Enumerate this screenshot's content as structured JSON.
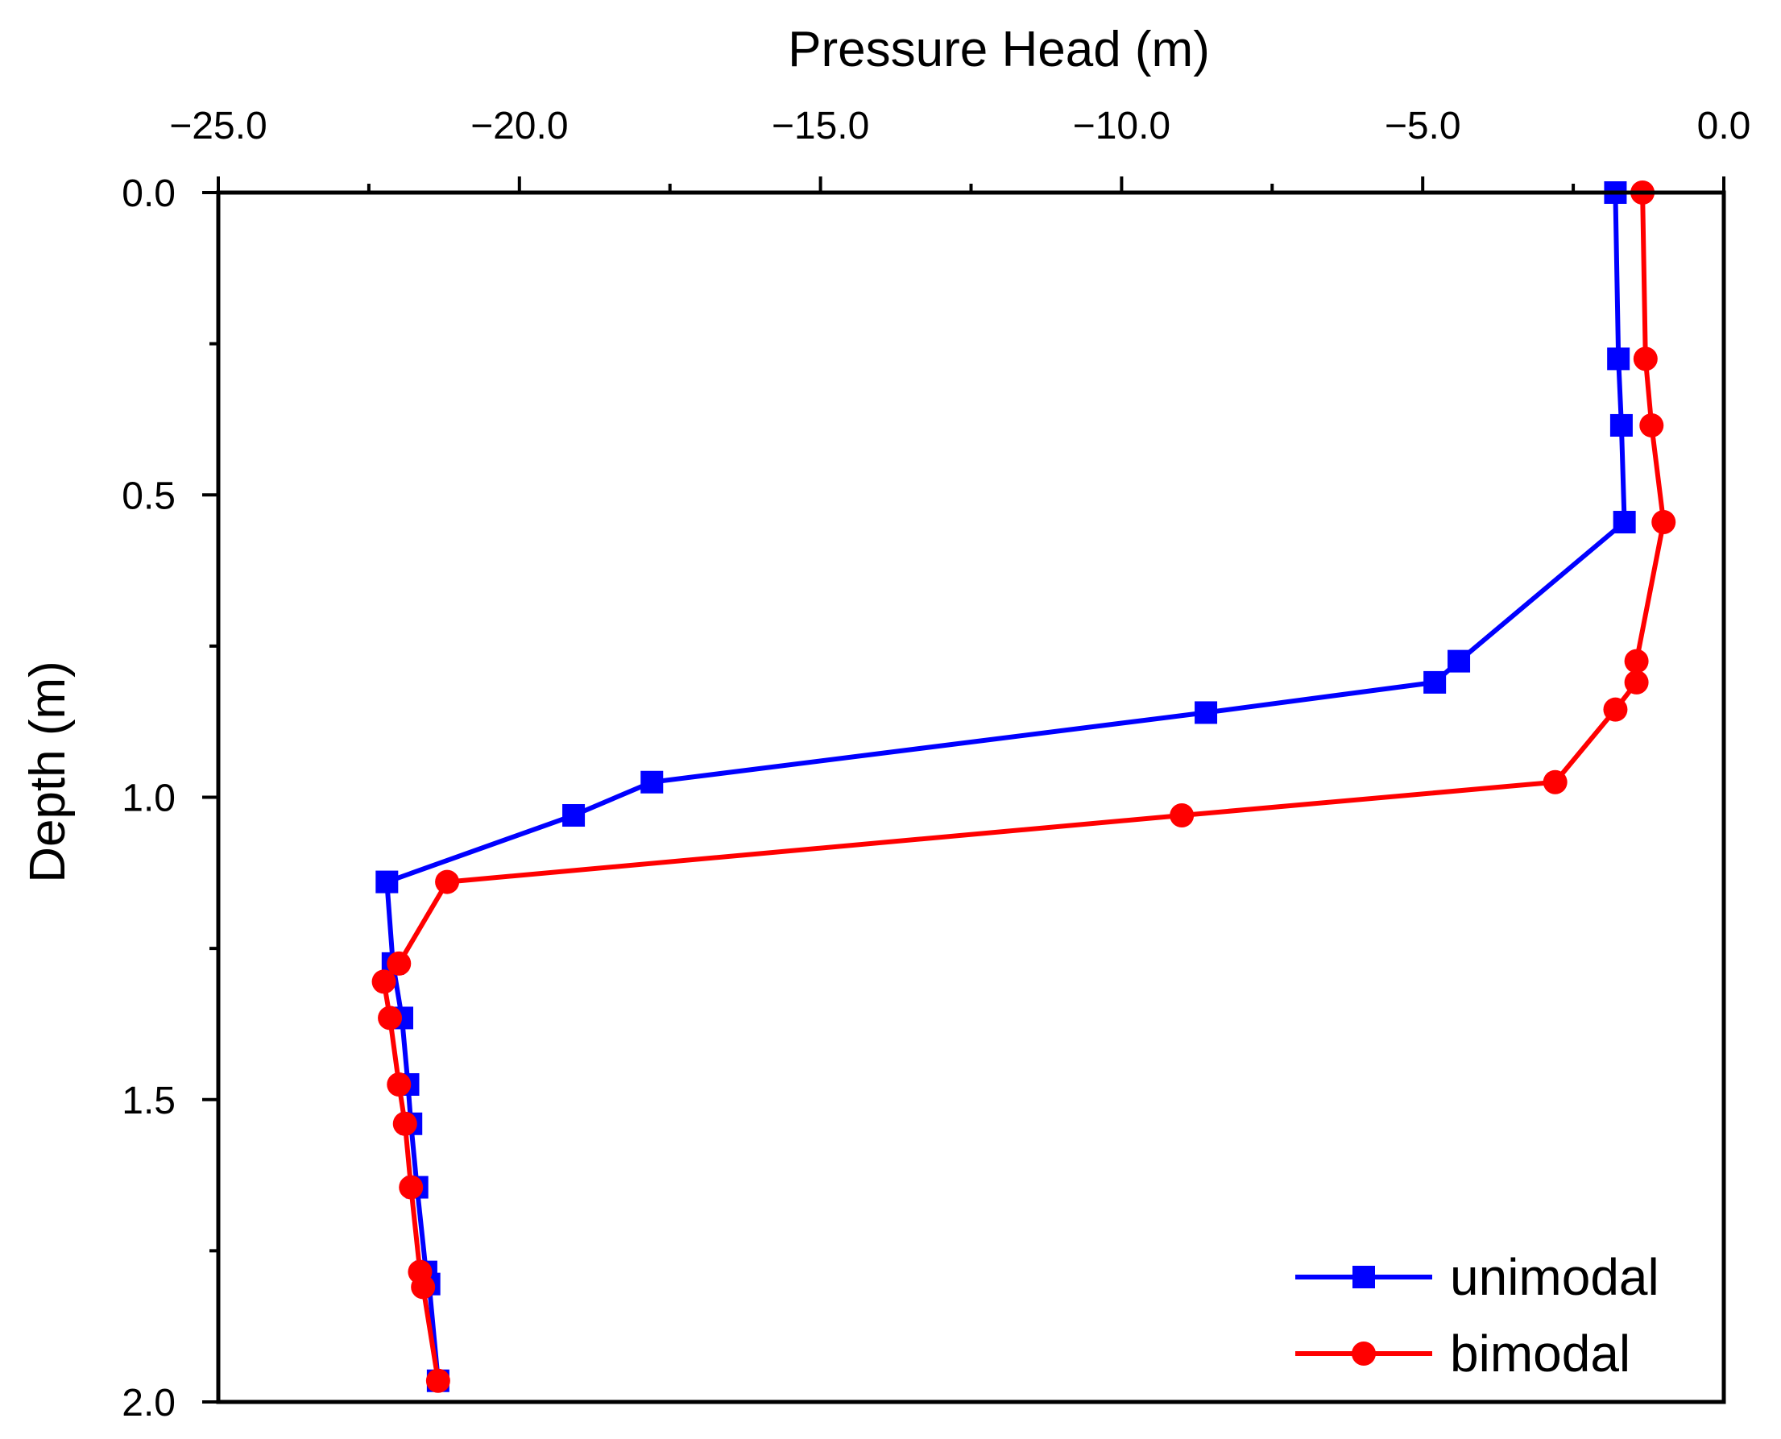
{
  "chart_data": {
    "type": "line",
    "title": "",
    "xlabel": "Pressure Head (m)",
    "ylabel": "Depth (m)",
    "x_axis_position": "top",
    "y_axis_inverted": true,
    "xlim": [
      -25.0,
      0.0
    ],
    "ylim": [
      0.0,
      2.0
    ],
    "x_ticks": [
      -25.0,
      -20.0,
      -15.0,
      -10.0,
      -5.0,
      0.0
    ],
    "x_tick_labels": [
      "−25.0",
      "−20.0",
      "−15.0",
      "−10.0",
      "−5.0",
      "0.0"
    ],
    "y_ticks": [
      0.0,
      0.5,
      1.0,
      1.5,
      2.0
    ],
    "y_tick_labels": [
      "0.0",
      "0.5",
      "1.0",
      "1.5",
      "2.0"
    ],
    "grid": false,
    "legend_position": "bottom-right",
    "series": [
      {
        "name": "unimodal",
        "color": "#0000ff",
        "marker": "square",
        "x": [
          -1.8,
          -1.75,
          -1.7,
          -1.65,
          -4.4,
          -4.8,
          -8.6,
          -17.8,
          -19.1,
          -22.2,
          -22.1,
          -21.95,
          -21.85,
          -21.8,
          -21.7,
          -21.55,
          -21.5,
          -21.35
        ],
        "y": [
          0.0,
          0.275,
          0.385,
          0.545,
          0.775,
          0.81,
          0.86,
          0.975,
          1.03,
          1.14,
          1.275,
          1.365,
          1.475,
          1.54,
          1.645,
          1.785,
          1.805,
          1.965
        ]
      },
      {
        "name": "bimodal",
        "color": "#ff0000",
        "marker": "circle",
        "x": [
          -1.35,
          -1.3,
          -1.2,
          -1.0,
          -1.45,
          -1.45,
          -1.8,
          -2.8,
          -9.0,
          -21.2,
          -22.0,
          -22.25,
          -22.15,
          -22.0,
          -21.9,
          -21.8,
          -21.65,
          -21.6,
          -21.35
        ],
        "y": [
          0.0,
          0.275,
          0.385,
          0.545,
          0.775,
          0.81,
          0.855,
          0.975,
          1.03,
          1.14,
          1.275,
          1.305,
          1.365,
          1.475,
          1.54,
          1.645,
          1.785,
          1.81,
          1.965
        ]
      }
    ]
  }
}
